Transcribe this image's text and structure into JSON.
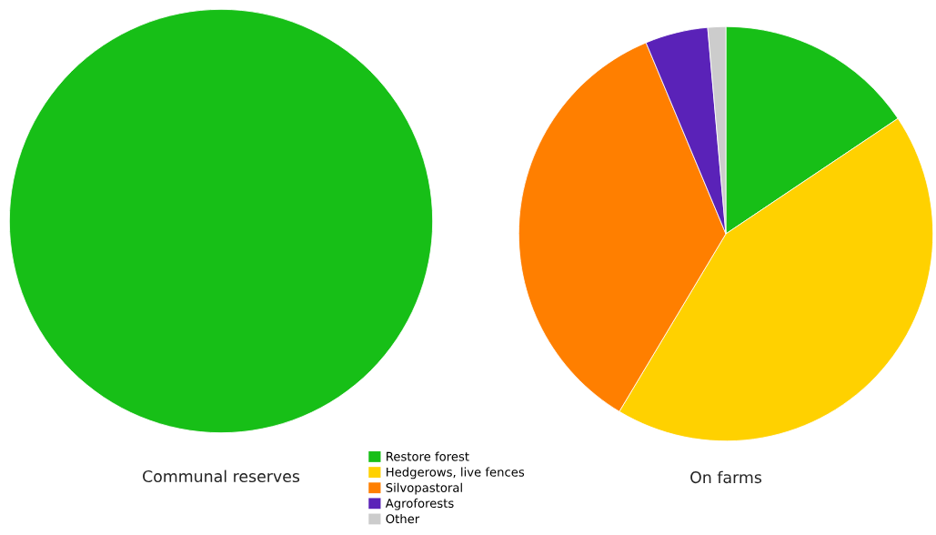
{
  "chart_data": [
    {
      "type": "pie",
      "title": "Communal reserves",
      "categories": [
        null
      ],
      "values": [
        100
      ],
      "colors": [
        "#17bf17"
      ]
    },
    {
      "type": "pie",
      "title": "On farms",
      "categories": [
        "Restore forest",
        "Hedgerows, live fences",
        "Silvopastoral",
        "Agroforests",
        "Other"
      ],
      "values": [
        15.6,
        43,
        35.1,
        4.9,
        1.4
      ],
      "colors": [
        "#17bf17",
        "#ffd100",
        "#ff7f00",
        "#5a22b8",
        "#cccccc"
      ],
      "legend": "bottom left"
    }
  ]
}
